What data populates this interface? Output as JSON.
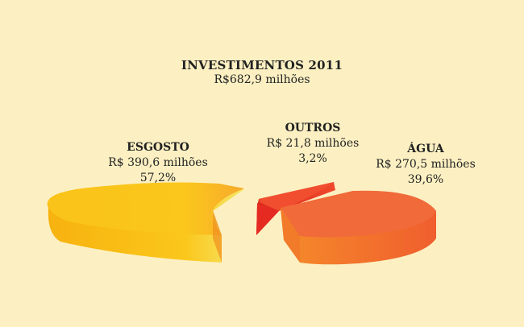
{
  "chart_data": {
    "type": "pie",
    "title": "INVESTIMENTOS 2011",
    "subtitle": "R$682,9 milhões",
    "slices": [
      {
        "label": "ESGOSTO",
        "value_text": "R$ 390,6 milhões",
        "percent_text": "57,2%",
        "value": 390.6,
        "percent": 57.2,
        "color": "#f9c21d"
      },
      {
        "label": "OUTROS",
        "value_text": "R$ 21,8 milhões",
        "percent_text": "3,2%",
        "value": 21.8,
        "percent": 3.2,
        "color": "#e83a24"
      },
      {
        "label": "ÁGUA",
        "value_text": "R$ 270,5 milhões",
        "percent_text": "39,6%",
        "value": 270.5,
        "percent": 39.6,
        "color": "#f26b35"
      }
    ],
    "total": 682.9
  },
  "colors": {
    "background": "#fcf0c2"
  }
}
